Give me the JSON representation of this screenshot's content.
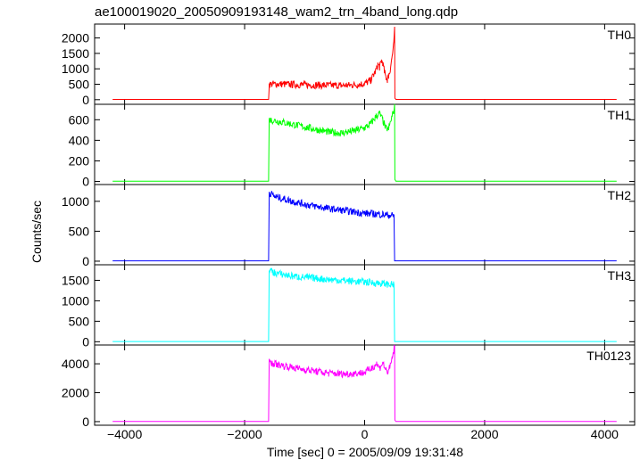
{
  "chart_data": {
    "type": "line",
    "title": "ae100019020_20050909193148_wam2_trn_4band_long.qdp",
    "xlabel": "Time [sec] 0 = 2005/09/09 19:31:48",
    "ylabel": "Counts/sec",
    "xlim": [
      -4500,
      4500
    ],
    "x_ticks": [
      -4000,
      -2000,
      0,
      2000,
      4000
    ],
    "x_ticklabels": [
      "−4000",
      "−2000",
      "0",
      "2000",
      "4000"
    ],
    "grid": false,
    "panels": [
      {
        "name": "TH0",
        "color": "#ff0000",
        "ylim": [
          -150,
          2450
        ],
        "y_ticks": [
          0,
          500,
          1000,
          1500,
          2000
        ],
        "x": [
          -4200,
          -1600,
          -1590,
          -1500,
          -1200,
          -800,
          -400,
          -200,
          0,
          100,
          150,
          200,
          220,
          250,
          280,
          300,
          330,
          360,
          380,
          400,
          420,
          450,
          480,
          500,
          505,
          520,
          1000,
          2000,
          3000,
          4200
        ],
        "values": [
          10,
          10,
          500,
          510,
          490,
          470,
          460,
          470,
          520,
          620,
          800,
          1000,
          1150,
          1050,
          1250,
          1200,
          900,
          700,
          650,
          780,
          900,
          1300,
          1700,
          2250,
          50,
          10,
          10,
          10,
          10,
          10
        ]
      },
      {
        "name": "TH1",
        "color": "#00ff00",
        "ylim": [
          -30,
          750
        ],
        "y_ticks": [
          0,
          200,
          400,
          600
        ],
        "x": [
          -4200,
          -1600,
          -1590,
          -1400,
          -1000,
          -600,
          -400,
          -200,
          0,
          100,
          200,
          250,
          300,
          350,
          400,
          450,
          500,
          505,
          520,
          1000,
          2000,
          3000,
          4200
        ],
        "values": [
          3,
          3,
          600,
          580,
          530,
          480,
          470,
          490,
          520,
          560,
          640,
          660,
          600,
          520,
          510,
          620,
          720,
          20,
          3,
          3,
          3,
          3,
          3
        ]
      },
      {
        "name": "TH2",
        "color": "#0000ff",
        "ylim": [
          -60,
          1280
        ],
        "y_ticks": [
          0,
          500,
          1000
        ],
        "x": [
          -4200,
          -1600,
          -1590,
          -1500,
          -1200,
          -900,
          -600,
          -300,
          0,
          300,
          480,
          490,
          500,
          1000,
          2000,
          3000,
          4200
        ],
        "values": [
          5,
          5,
          1150,
          1080,
          1000,
          930,
          880,
          840,
          800,
          780,
          760,
          760,
          5,
          5,
          5,
          5,
          5
        ]
      },
      {
        "name": "TH3",
        "color": "#00ffff",
        "ylim": [
          -80,
          1880
        ],
        "y_ticks": [
          0,
          500,
          1000,
          1500
        ],
        "x": [
          -4200,
          -1600,
          -1590,
          -1500,
          -1200,
          -900,
          -600,
          -300,
          0,
          300,
          480,
          490,
          500,
          1000,
          2000,
          3000,
          4200
        ],
        "values": [
          5,
          5,
          1750,
          1680,
          1600,
          1560,
          1520,
          1490,
          1460,
          1420,
          1390,
          1380,
          5,
          5,
          5,
          5,
          5
        ]
      },
      {
        "name": "TH0123",
        "color": "#ff00ff",
        "ylim": [
          -250,
          5300
        ],
        "y_ticks": [
          0,
          2000,
          4000
        ],
        "x": [
          -4200,
          -1600,
          -1590,
          -1400,
          -1000,
          -600,
          -300,
          0,
          100,
          200,
          250,
          300,
          350,
          380,
          420,
          460,
          500,
          505,
          520,
          1000,
          2000,
          3000,
          4200
        ],
        "values": [
          15,
          15,
          4100,
          3900,
          3600,
          3350,
          3300,
          3400,
          3650,
          4000,
          3700,
          4100,
          3600,
          3450,
          3700,
          4400,
          5200,
          100,
          15,
          15,
          15,
          15,
          15
        ]
      }
    ]
  }
}
